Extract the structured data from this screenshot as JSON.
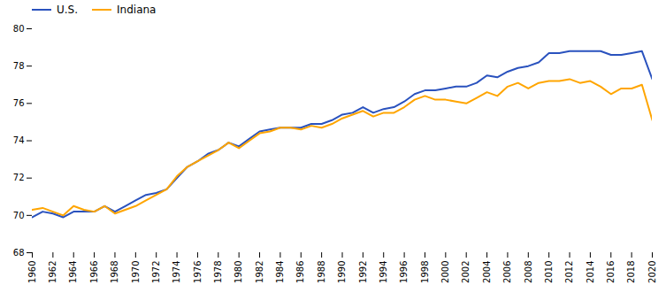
{
  "chart_data": {
    "type": "line",
    "x": [
      1960,
      1961,
      1962,
      1963,
      1964,
      1965,
      1966,
      1967,
      1968,
      1969,
      1970,
      1971,
      1972,
      1973,
      1974,
      1975,
      1976,
      1977,
      1978,
      1979,
      1980,
      1981,
      1982,
      1983,
      1984,
      1985,
      1986,
      1987,
      1988,
      1989,
      1990,
      1991,
      1992,
      1993,
      1994,
      1995,
      1996,
      1997,
      1998,
      1999,
      2000,
      2001,
      2002,
      2003,
      2004,
      2005,
      2006,
      2007,
      2008,
      2009,
      2010,
      2011,
      2012,
      2013,
      2014,
      2015,
      2016,
      2017,
      2018,
      2019,
      2020
    ],
    "series": [
      {
        "name": "U.S.",
        "color": "#2A52BE",
        "values": [
          69.9,
          70.2,
          70.1,
          69.9,
          70.2,
          70.2,
          70.2,
          70.5,
          70.2,
          70.5,
          70.8,
          71.1,
          71.2,
          71.4,
          72.0,
          72.6,
          72.9,
          73.3,
          73.5,
          73.9,
          73.7,
          74.1,
          74.5,
          74.6,
          74.7,
          74.7,
          74.7,
          74.9,
          74.9,
          75.1,
          75.4,
          75.5,
          75.8,
          75.5,
          75.7,
          75.8,
          76.1,
          76.5,
          76.7,
          76.7,
          76.8,
          76.9,
          76.9,
          77.1,
          77.5,
          77.4,
          77.7,
          77.9,
          78.0,
          78.2,
          78.7,
          78.7,
          78.8,
          78.8,
          78.8,
          78.8,
          78.6,
          78.6,
          78.7,
          78.8,
          77.3
        ]
      },
      {
        "name": "Indiana",
        "color": "#FFA500",
        "values": [
          70.3,
          70.4,
          70.2,
          70.0,
          70.5,
          70.3,
          70.2,
          70.5,
          70.1,
          70.3,
          70.5,
          70.8,
          71.1,
          71.4,
          72.1,
          72.6,
          72.9,
          73.2,
          73.5,
          73.9,
          73.6,
          74.0,
          74.4,
          74.5,
          74.7,
          74.7,
          74.6,
          74.8,
          74.7,
          74.9,
          75.2,
          75.4,
          75.6,
          75.3,
          75.5,
          75.5,
          75.8,
          76.2,
          76.4,
          76.2,
          76.2,
          76.1,
          76.0,
          76.3,
          76.6,
          76.4,
          76.9,
          77.1,
          76.8,
          77.1,
          77.2,
          77.2,
          77.3,
          77.1,
          77.2,
          76.9,
          76.5,
          76.8,
          76.8,
          77.0,
          75.1
        ]
      }
    ],
    "xlim": [
      1960,
      2020
    ],
    "xticks": [
      1960,
      1962,
      1964,
      1966,
      1968,
      1970,
      1972,
      1974,
      1976,
      1978,
      1980,
      1982,
      1984,
      1986,
      1988,
      1990,
      1992,
      1994,
      1996,
      1998,
      2000,
      2002,
      2004,
      2006,
      2008,
      2010,
      2012,
      2014,
      2016,
      2018,
      2020
    ],
    "ylim": [
      68,
      80
    ],
    "yticks": [
      68,
      70,
      72,
      74,
      76,
      78,
      80
    ],
    "grid": false,
    "legend": "upper left"
  }
}
